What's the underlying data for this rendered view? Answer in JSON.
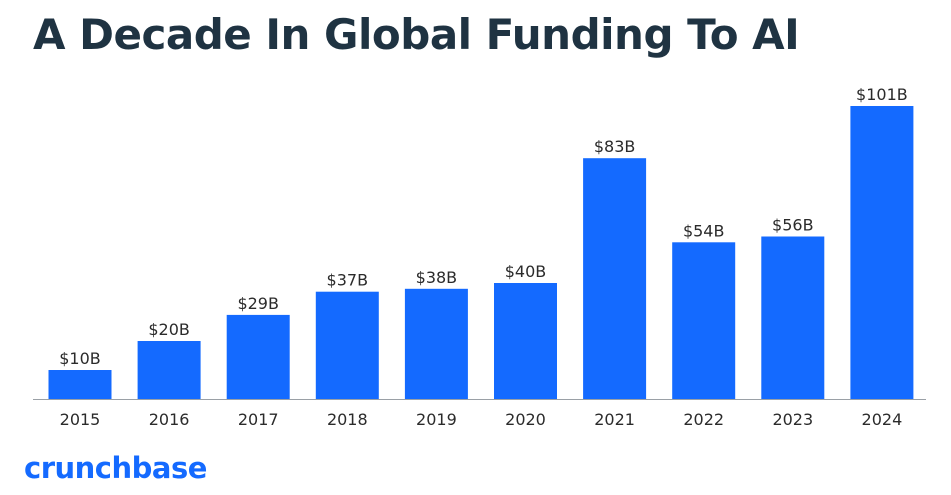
{
  "title": "A Decade In Global Funding To AI",
  "logo_text": "crunchbase",
  "colors": {
    "bar": "#146aff",
    "title": "#1f3342",
    "axis": "#9aa0a6",
    "label": "#2b2b2b",
    "logo": "#146aff"
  },
  "chart_data": {
    "type": "bar",
    "categories": [
      "2015",
      "2016",
      "2017",
      "2018",
      "2019",
      "2020",
      "2021",
      "2022",
      "2023",
      "2024"
    ],
    "values": [
      10,
      20,
      29,
      37,
      38,
      40,
      83,
      54,
      56,
      101
    ],
    "data_labels": [
      "$10B",
      "$20B",
      "$29B",
      "$37B",
      "$38B",
      "$40B",
      "$83B",
      "$54B",
      "$56B",
      "$101B"
    ],
    "unit": "B",
    "ylim": [
      0,
      101
    ],
    "grid": false,
    "legend": "none"
  }
}
